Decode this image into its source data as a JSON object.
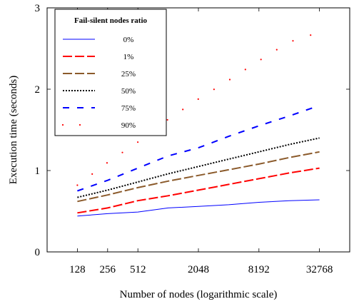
{
  "chart_data": {
    "type": "line",
    "xlabel": "Number of nodes (logarithmic scale)",
    "ylabel": "Execution time (seconds)",
    "x_scale": "log2",
    "x_ticks": [
      128,
      256,
      512,
      2048,
      8192,
      32768
    ],
    "x_tick_labels": [
      "128",
      "256",
      "512",
      "2048",
      "8192",
      "32768"
    ],
    "y_ticks": [
      0,
      1,
      2,
      3
    ],
    "y_tick_labels": [
      "0",
      "1",
      "2",
      "3"
    ],
    "xlim": [
      64,
      65536
    ],
    "ylim": [
      0,
      3
    ],
    "grid": false,
    "legend": {
      "title": "Fail-silent nodes ratio",
      "placement": "top-left"
    },
    "x": [
      128,
      256,
      512,
      1024,
      2048,
      4096,
      8192,
      16384,
      32768
    ],
    "series": [
      {
        "name": "0%",
        "color": "#0000ff",
        "style": "solid",
        "values": [
          0.44,
          0.47,
          0.49,
          0.54,
          0.56,
          0.58,
          0.61,
          0.63,
          0.64
        ]
      },
      {
        "name": "1%",
        "color": "#ff0000",
        "style": "longdash",
        "values": [
          0.48,
          0.54,
          0.63,
          0.69,
          0.76,
          0.83,
          0.9,
          0.97,
          1.03
        ]
      },
      {
        "name": "25%",
        "color": "#8b5a2b",
        "style": "longdash",
        "values": [
          0.62,
          0.7,
          0.79,
          0.87,
          0.94,
          1.01,
          1.08,
          1.16,
          1.23
        ]
      },
      {
        "name": "50%",
        "color": "#000000",
        "style": "dotted",
        "values": [
          0.67,
          0.76,
          0.86,
          0.96,
          1.05,
          1.14,
          1.23,
          1.32,
          1.4
        ]
      },
      {
        "name": "75%",
        "color": "#0000ff",
        "style": "dashed",
        "values": [
          0.75,
          0.88,
          1.03,
          1.18,
          1.28,
          1.42,
          1.55,
          1.67,
          1.8
        ]
      },
      {
        "name": "90%",
        "color": "#ff0000",
        "style": "sparsedot",
        "values": [
          0.82,
          1.1,
          1.35,
          1.63,
          1.88,
          2.11,
          2.35,
          2.58,
          2.7
        ]
      }
    ]
  }
}
